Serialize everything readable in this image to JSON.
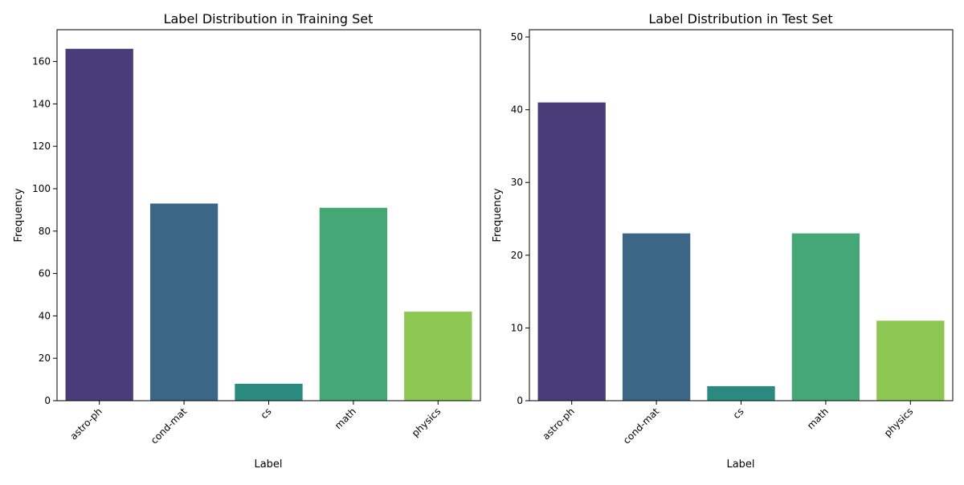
{
  "colors": {
    "bar_colors": [
      "#483d78",
      "#3c6685",
      "#2a8a7f",
      "#44a775",
      "#8cc653"
    ],
    "axis": "#000000",
    "background": "#ffffff"
  },
  "chart_data": [
    {
      "type": "bar",
      "title": "Label Distribution in Training Set",
      "xlabel": "Label",
      "ylabel": "Frequency",
      "categories": [
        "astro-ph",
        "cond-mat",
        "cs",
        "math",
        "physics"
      ],
      "values": [
        166,
        93,
        8,
        91,
        42
      ],
      "ylim": [
        0,
        175
      ],
      "yticks": [
        0,
        20,
        40,
        60,
        80,
        100,
        120,
        140,
        160
      ],
      "grid": false
    },
    {
      "type": "bar",
      "title": "Label Distribution in Test Set",
      "xlabel": "Label",
      "ylabel": "Frequency",
      "categories": [
        "astro-ph",
        "cond-mat",
        "cs",
        "math",
        "physics"
      ],
      "values": [
        41,
        23,
        2,
        23,
        11
      ],
      "ylim": [
        0,
        51
      ],
      "yticks": [
        0,
        10,
        20,
        30,
        40,
        50
      ],
      "grid": false
    }
  ]
}
